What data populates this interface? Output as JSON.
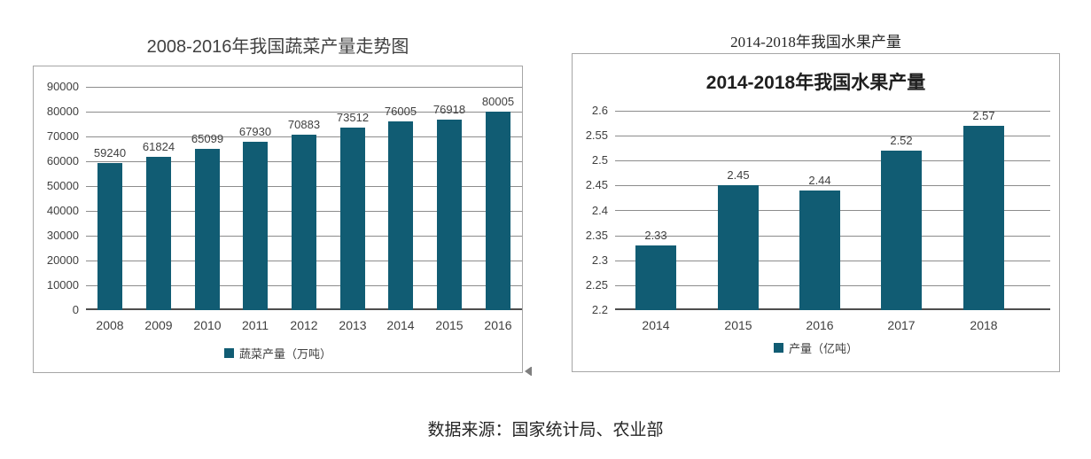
{
  "page": {
    "source_note": "数据来源：国家统计局、农业部"
  },
  "colors": {
    "bar": "#115c73",
    "gridline": "#8c8c8c",
    "axis_line": "#4d4d4d",
    "card_border": "#a6a6a6",
    "text": "#404040"
  },
  "chart_data": [
    {
      "type": "bar",
      "title": "2008-2016年我国蔬菜产量走势图",
      "categories": [
        "2008",
        "2009",
        "2010",
        "2011",
        "2012",
        "2013",
        "2014",
        "2015",
        "2016"
      ],
      "values": [
        59240,
        61824,
        65099,
        67930,
        70883,
        73512,
        76005,
        76918,
        80005
      ],
      "ylim": [
        0,
        90000
      ],
      "ytick_step": 10000,
      "ytick_labels": [
        "0",
        "10000",
        "20000",
        "30000",
        "40000",
        "50000",
        "60000",
        "70000",
        "80000",
        "90000"
      ],
      "legend": "蔬菜产量（万吨）",
      "legend_position": "bottom",
      "bar_color": "#115c73",
      "grid": true,
      "data_labels": true
    },
    {
      "type": "bar",
      "outer_title": "2014-2018年我国水果产量",
      "title": "2014-2018年我国水果产量",
      "categories": [
        "2014",
        "2015",
        "2016",
        "2017",
        "2018"
      ],
      "values": [
        2.33,
        2.45,
        2.44,
        2.52,
        2.57
      ],
      "ylim": [
        2.2,
        2.6
      ],
      "ytick_step": 0.05,
      "ytick_labels": [
        "2.2",
        "2.25",
        "2.3",
        "2.35",
        "2.4",
        "2.45",
        "2.5",
        "2.55",
        "2.6"
      ],
      "legend": "产量（亿吨）",
      "legend_position": "bottom",
      "bar_color": "#115c73",
      "grid": true,
      "data_labels": true
    }
  ]
}
